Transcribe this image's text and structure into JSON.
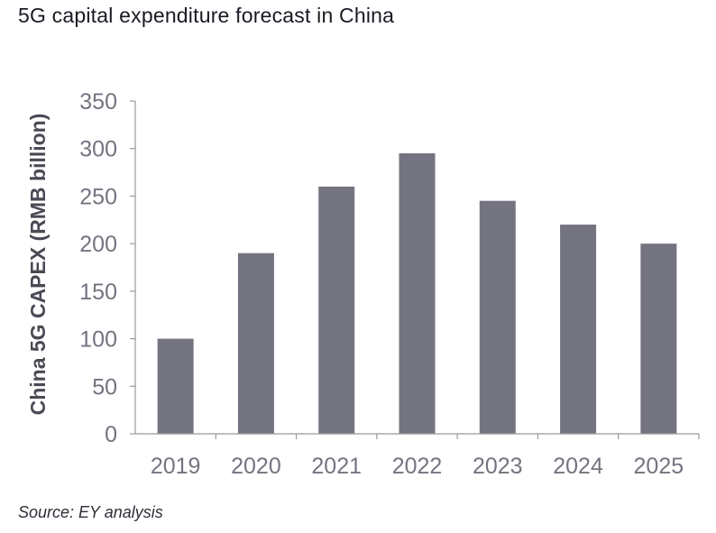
{
  "chart_data": {
    "type": "bar",
    "title": "5G capital expenditure forecast in China",
    "categories": [
      "2019",
      "2020",
      "2021",
      "2022",
      "2023",
      "2024",
      "2025"
    ],
    "values": [
      100,
      190,
      260,
      295,
      245,
      220,
      200
    ],
    "xlabel": "",
    "ylabel": "China 5G CAPEX (RMB billion)",
    "ylim": [
      0,
      350
    ],
    "yticks": [
      0,
      50,
      100,
      150,
      200,
      250,
      300,
      350
    ],
    "grid": false,
    "bar_color": "#747480",
    "axis_color": "#999999"
  },
  "source": "Source: EY analysis"
}
